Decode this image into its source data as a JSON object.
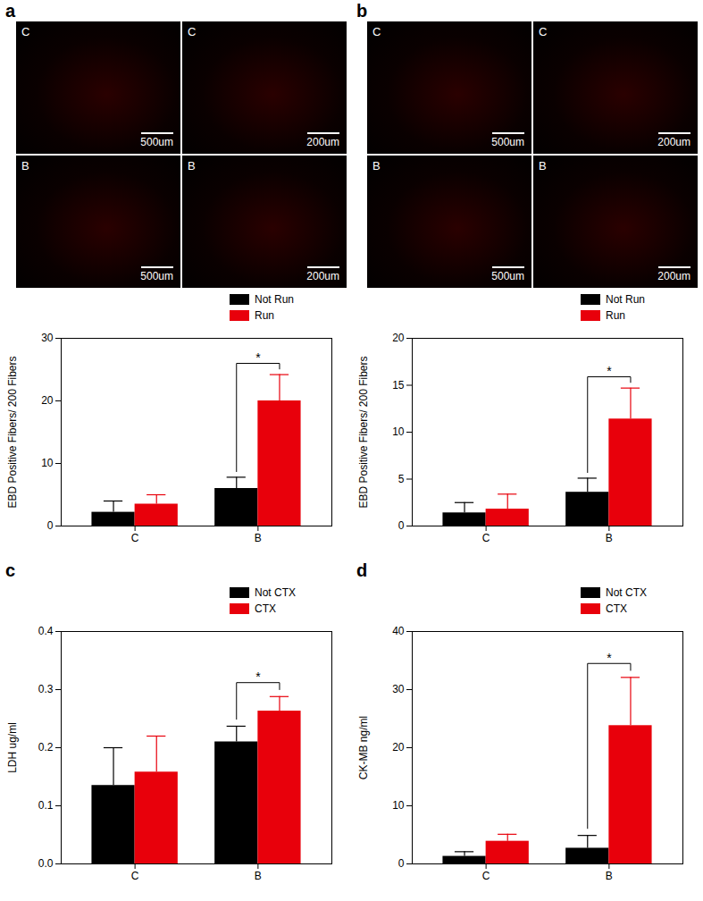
{
  "micrographs": [
    {
      "panel": "a",
      "tiles": [
        {
          "label": "C",
          "scale_bar": "500um"
        },
        {
          "label": "C",
          "scale_bar": "200um"
        },
        {
          "label": "B",
          "scale_bar": "500um"
        },
        {
          "label": "B",
          "scale_bar": "200um"
        }
      ]
    },
    {
      "panel": "b",
      "tiles": [
        {
          "label": "C",
          "scale_bar": "500um"
        },
        {
          "label": "C",
          "scale_bar": "200um"
        },
        {
          "label": "B",
          "scale_bar": "500um"
        },
        {
          "label": "B",
          "scale_bar": "200um"
        }
      ]
    }
  ],
  "chart_data": [
    {
      "panel": "a",
      "type": "bar",
      "categories": [
        "C",
        "B"
      ],
      "series": [
        {
          "name": "Not Run",
          "color": "#000000",
          "values": [
            2.2,
            6.0
          ],
          "errors": [
            1.8,
            1.8
          ]
        },
        {
          "name": "Run",
          "color": "#e8000b",
          "values": [
            3.5,
            20.0
          ],
          "errors": [
            1.5,
            4.2
          ]
        }
      ],
      "ylabel": "EBD Positive Fibers/ 200 Fibers",
      "ylim": [
        0,
        30
      ],
      "yticks": [
        0,
        10,
        20,
        30
      ],
      "legend": "top-right",
      "annotations": [
        {
          "category": "B",
          "text": "*"
        }
      ]
    },
    {
      "panel": "b",
      "type": "bar",
      "categories": [
        "C",
        "B"
      ],
      "series": [
        {
          "name": "Not Run",
          "color": "#000000",
          "values": [
            1.4,
            3.6
          ],
          "errors": [
            1.1,
            1.5
          ]
        },
        {
          "name": "Run",
          "color": "#e8000b",
          "values": [
            1.8,
            11.4
          ],
          "errors": [
            1.6,
            3.3
          ]
        }
      ],
      "ylabel": "EBD Positive Fibers/ 200 Fibers",
      "ylim": [
        0,
        20
      ],
      "yticks": [
        0,
        5,
        10,
        15,
        20
      ],
      "legend": "top-right",
      "annotations": [
        {
          "category": "B",
          "text": "*"
        }
      ]
    },
    {
      "panel": "c",
      "type": "bar",
      "categories": [
        "C",
        "B"
      ],
      "series": [
        {
          "name": "Not CTX",
          "color": "#000000",
          "values": [
            0.135,
            0.21
          ],
          "errors": [
            0.065,
            0.027
          ]
        },
        {
          "name": "CTX",
          "color": "#e8000b",
          "values": [
            0.158,
            0.263
          ],
          "errors": [
            0.062,
            0.025
          ]
        }
      ],
      "ylabel": "LDH ug/ml",
      "ylim": [
        0,
        0.4
      ],
      "yticks": [
        {
          "value": 0,
          "label": "0.0"
        },
        0.1,
        0.2,
        0.3,
        0.4
      ],
      "legend": "top-right",
      "annotations": [
        {
          "category": "B",
          "text": "*"
        }
      ]
    },
    {
      "panel": "d",
      "type": "bar",
      "categories": [
        "C",
        "B"
      ],
      "series": [
        {
          "name": "Not CTX",
          "color": "#000000",
          "values": [
            1.3,
            2.7
          ],
          "errors": [
            0.8,
            2.2
          ]
        },
        {
          "name": "CTX",
          "color": "#e8000b",
          "values": [
            3.9,
            23.8
          ],
          "errors": [
            1.2,
            8.3
          ]
        }
      ],
      "ylabel": "CK-MB ng/ml",
      "ylim": [
        0,
        40
      ],
      "yticks": [
        0,
        10,
        20,
        30,
        40
      ],
      "legend": "top-right",
      "annotations": [
        {
          "category": "B",
          "text": "*"
        }
      ]
    }
  ]
}
